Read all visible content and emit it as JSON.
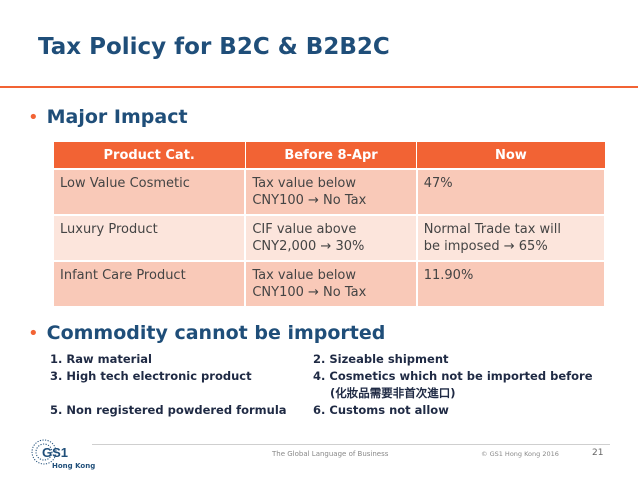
{
  "slide": {
    "title": "Tax Policy for B2C & B2B2C",
    "bullet1": "Major Impact",
    "bullet2": "Commodity cannot be imported"
  },
  "table": {
    "headers": [
      "Product Cat.",
      "Before 8-Apr",
      "Now"
    ],
    "rows": [
      {
        "cat": "Low Value Cosmetic",
        "before_1": "Tax value below",
        "before_2": "CNY100 → No Tax",
        "now_1": "47%",
        "now_2": ""
      },
      {
        "cat": "Luxury Product",
        "before_1": "CIF value above",
        "before_2": "CNY2,000 → 30%",
        "now_1": "Normal Trade tax will",
        "now_2": "be imposed → 65%"
      },
      {
        "cat": "Infant Care Product",
        "before_1": "Tax value below",
        "before_2": "CNY100 → No Tax",
        "now_1": "11.90%",
        "now_2": ""
      }
    ]
  },
  "commodities": {
    "item1": "1. Raw material",
    "item2": "2. Sizeable shipment",
    "item3": "3. High tech electronic product",
    "item4_1": "4. Cosmetics which not be imported before",
    "item4_2": "(化妝品需要非首次進口)",
    "item5": "5. Non registered powdered formula",
    "item6": "6. Customs not allow"
  },
  "footer": {
    "logo_text": "GS1",
    "logo_sub": "Hong Kong",
    "tagline": "The Global Language of Business",
    "copyright": "© GS1 Hong Kong 2016",
    "page": "21"
  },
  "colors": {
    "accent": "#f26334",
    "title": "#1f4e79",
    "row_dark": "#f9c9b8",
    "row_light": "#fce5dc"
  }
}
